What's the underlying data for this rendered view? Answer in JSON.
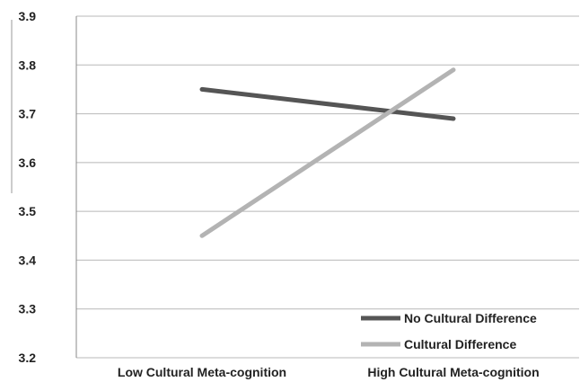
{
  "chart_data": {
    "type": "line",
    "title": "",
    "xlabel": "",
    "ylabel": "",
    "categories": [
      "Low Cultural Meta-cognition",
      "High Cultural Meta-cognition"
    ],
    "ylim": [
      3.2,
      3.9
    ],
    "yticks": [
      "3.2",
      "3.3",
      "3.4",
      "3.5",
      "3.6",
      "3.7",
      "3.8",
      "3.9"
    ],
    "grid": true,
    "legend_position": "bottom-right",
    "series": [
      {
        "name": "No Cultural Difference",
        "values": [
          3.75,
          3.69
        ],
        "color": "#555555"
      },
      {
        "name": "Cultural Difference",
        "values": [
          3.45,
          3.79
        ],
        "color": "#b3b3b3"
      }
    ]
  }
}
